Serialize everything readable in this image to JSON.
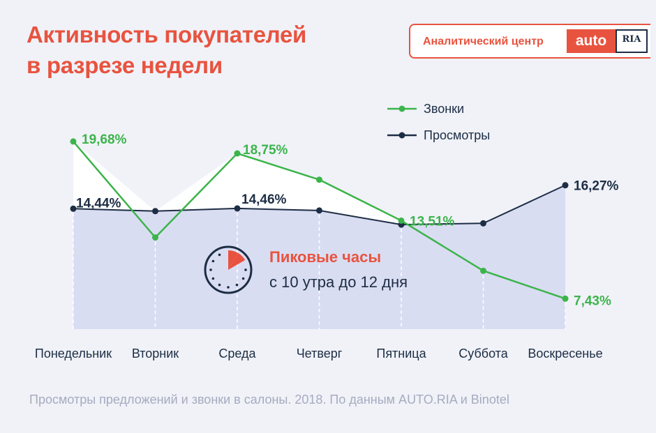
{
  "title": {
    "line1": "Активность покупателей",
    "line2": "в разрезе недели"
  },
  "brand": {
    "label": "Аналитический центр",
    "logo_auto": "auto",
    "logo_ria": "RIA"
  },
  "peak": {
    "title": "Пиковые часы",
    "subtitle": "с 10 утра до 12 дня",
    "icon": "clock-icon"
  },
  "footnote": "Просмотры предложений и звонки в салоны. 2018. По данным AUTO.RIA и Binotel",
  "colors": {
    "accent": "#e8533f",
    "calls": "#3cb44b",
    "views": "#1d2d44",
    "fill": "#d9ddf2"
  },
  "chart_data": {
    "type": "line",
    "categories": [
      "Понедельник",
      "Вторник",
      "Среда",
      "Четверг",
      "Пятница",
      "Суббота",
      "Воскресенье"
    ],
    "series": [
      {
        "name": "Звонки",
        "color": "#3cb44b",
        "values": [
          19.68,
          12.2,
          18.75,
          16.7,
          13.51,
          9.6,
          7.43
        ],
        "labels": [
          "19,68%",
          "",
          "18,75%",
          "",
          "13,51%",
          "",
          "7,43%"
        ]
      },
      {
        "name": "Просмотры",
        "color": "#1d2d44",
        "values": [
          14.44,
          14.25,
          14.46,
          14.3,
          13.2,
          13.3,
          16.27
        ],
        "labels": [
          "14,44%",
          "",
          "14,46%",
          "",
          "",
          "",
          "16,27%"
        ]
      }
    ],
    "ylim": [
      0,
      22
    ],
    "grid": false,
    "legend_position": "top-right"
  }
}
